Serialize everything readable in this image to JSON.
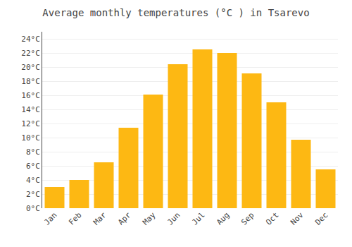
{
  "chart_data": {
    "type": "bar",
    "title": "Average monthly temperatures (°C ) in Tsarevo",
    "categories": [
      "Jan",
      "Feb",
      "Mar",
      "Apr",
      "May",
      "Jun",
      "Jul",
      "Aug",
      "Sep",
      "Oct",
      "Nov",
      "Dec"
    ],
    "values": [
      3.0,
      4.0,
      6.5,
      11.4,
      16.1,
      20.4,
      22.5,
      22.0,
      19.1,
      15.0,
      9.7,
      5.5
    ],
    "color": "#FDB813",
    "ylim": [
      0,
      25
    ],
    "yticks": [
      {
        "value": 0,
        "label": "0°C"
      },
      {
        "value": 2,
        "label": "2°C"
      },
      {
        "value": 4,
        "label": "4°C"
      },
      {
        "value": 6,
        "label": "6°C"
      },
      {
        "value": 8,
        "label": "8°C"
      },
      {
        "value": 10,
        "label": "10°C"
      },
      {
        "value": 12,
        "label": "12°C"
      },
      {
        "value": 14,
        "label": "14°C"
      },
      {
        "value": 16,
        "label": "16°C"
      },
      {
        "value": 18,
        "label": "18°C"
      },
      {
        "value": 20,
        "label": "20°C"
      },
      {
        "value": 22,
        "label": "22°C"
      },
      {
        "value": 24,
        "label": "24°C"
      }
    ],
    "grid": true
  }
}
